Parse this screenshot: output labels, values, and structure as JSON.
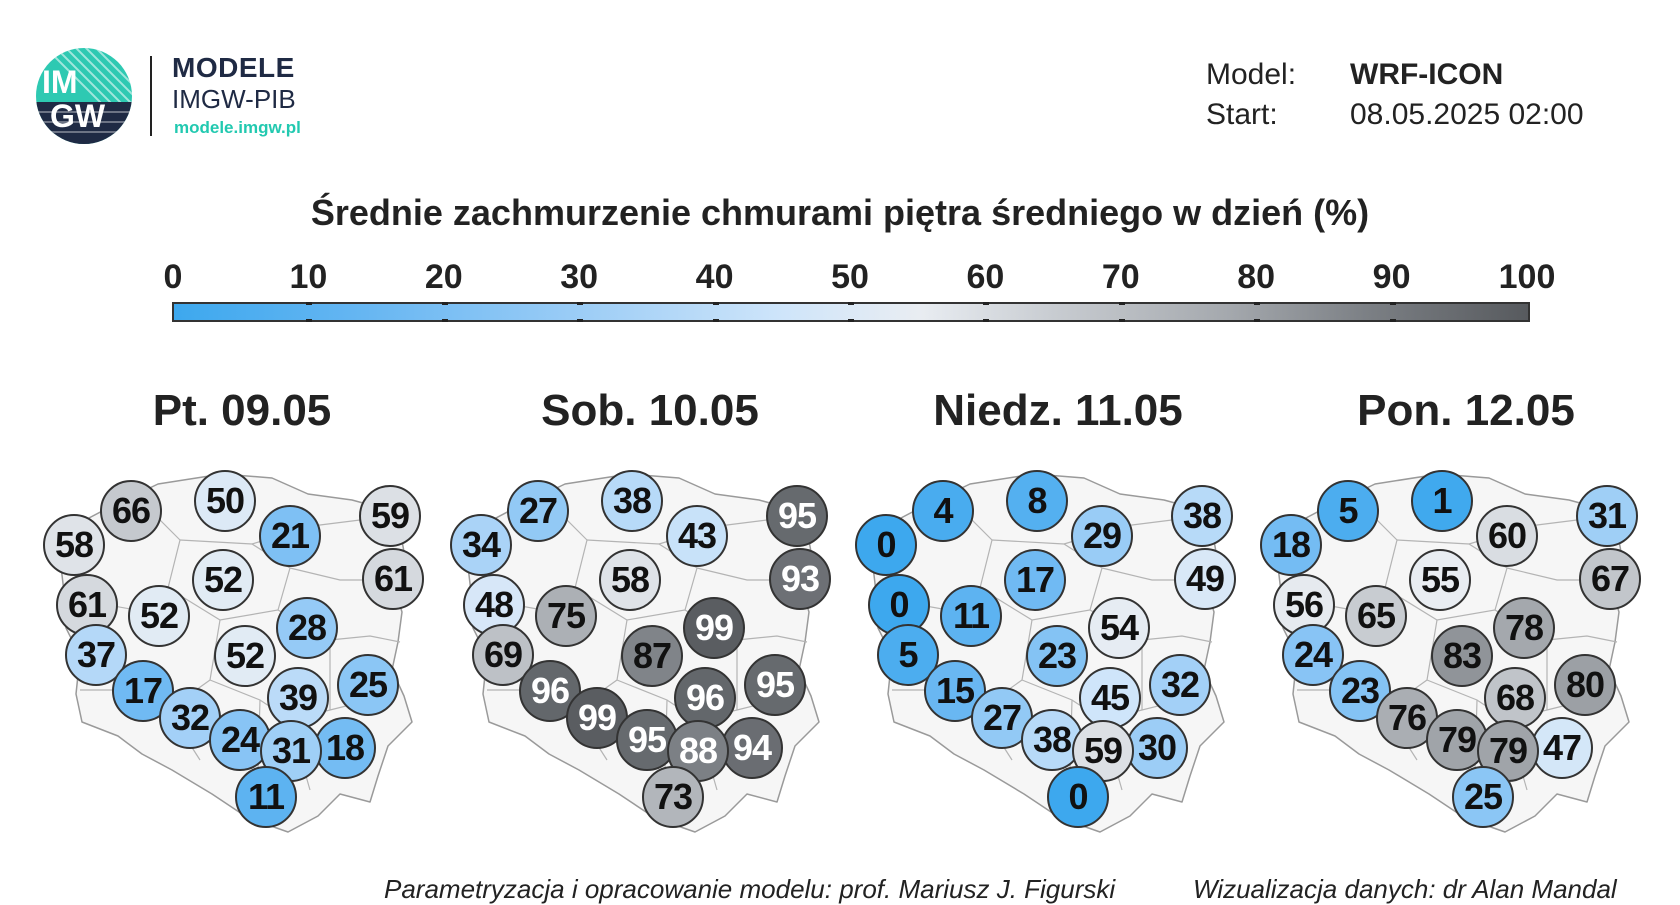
{
  "brand": {
    "logo_text_top": "IM",
    "logo_text_bottom": "GW",
    "title": "MODELE",
    "subtitle": "IMGW-PIB",
    "url": "modele.imgw.pl"
  },
  "meta": {
    "model_label": "Model:",
    "model_value": "WRF-ICON",
    "start_label": "Start:",
    "start_value": "08.05.2025 02:00"
  },
  "title": "Średnie zachmurzenie chmurami piętra średniego w dzień (%)",
  "scale": {
    "labels": [
      "0",
      "10",
      "20",
      "30",
      "40",
      "50",
      "60",
      "70",
      "80",
      "90",
      "100"
    ]
  },
  "colors": {
    "low": "#3da8ee",
    "mid": "#e9edf2",
    "high": "#575a5e"
  },
  "days": [
    {
      "label": "Pt. 09.05",
      "values": [
        66,
        50,
        59,
        58,
        21,
        61,
        52,
        61,
        52,
        28,
        37,
        52,
        25,
        17,
        39,
        32,
        24,
        18,
        31,
        11
      ]
    },
    {
      "label": "Sob. 10.05",
      "values": [
        27,
        38,
        95,
        34,
        43,
        93,
        58,
        48,
        75,
        99,
        69,
        87,
        95,
        96,
        96,
        99,
        95,
        94,
        88,
        73
      ]
    },
    {
      "label": "Niedz. 11.05",
      "values": [
        4,
        8,
        38,
        0,
        29,
        49,
        17,
        0,
        11,
        54,
        5,
        23,
        32,
        15,
        45,
        27,
        38,
        30,
        59,
        0
      ]
    },
    {
      "label": "Pon. 12.05",
      "values": [
        5,
        1,
        31,
        18,
        60,
        67,
        55,
        56,
        65,
        78,
        24,
        83,
        80,
        23,
        68,
        76,
        79,
        47,
        79,
        25
      ]
    }
  ],
  "footer": {
    "left": "Parametryzacja i opracowanie modelu: prof. Mariusz J. Figurski",
    "right": "Wizualizacja danych: dr Alan Mandal"
  }
}
